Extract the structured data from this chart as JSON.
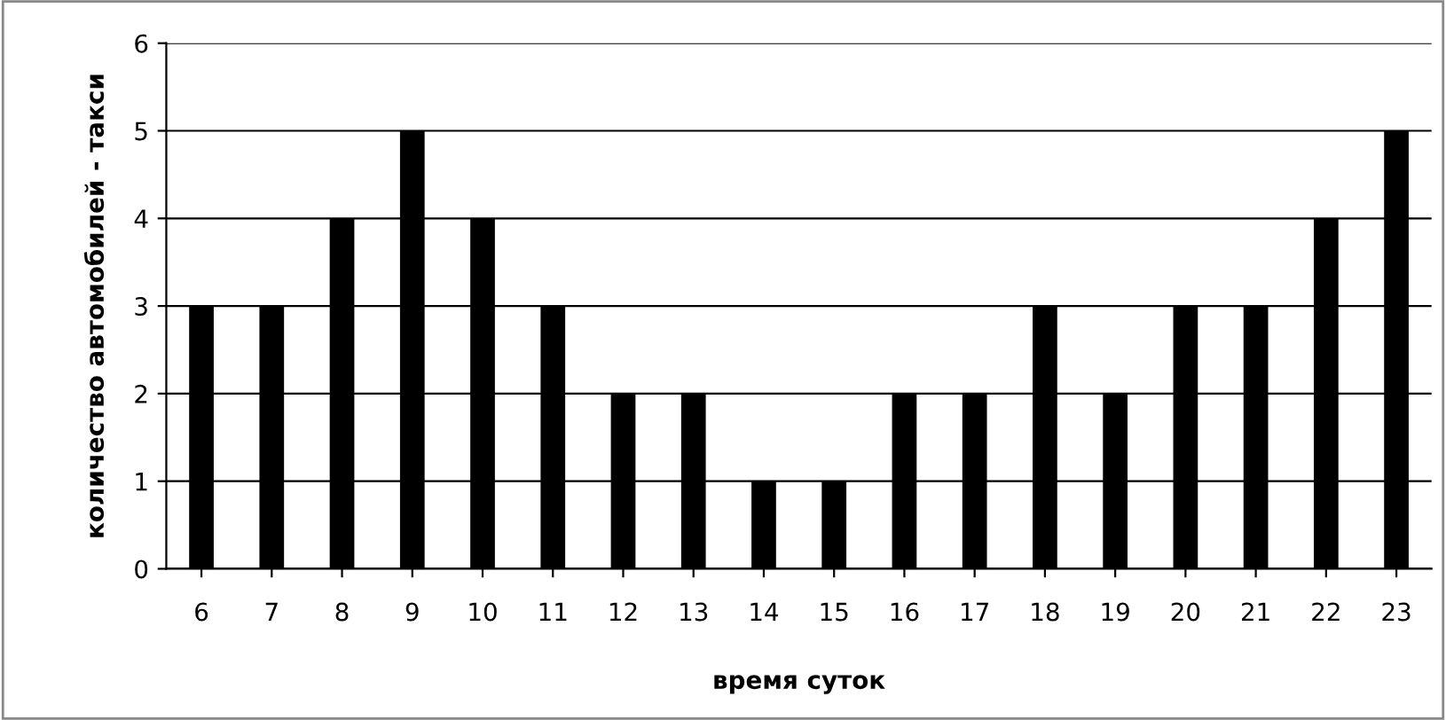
{
  "chart_data": {
    "type": "bar",
    "xlabel": "время суток",
    "ylabel": "количество автомобилей - такси",
    "categories": [
      "6",
      "7",
      "8",
      "9",
      "10",
      "11",
      "12",
      "13",
      "14",
      "15",
      "16",
      "17",
      "18",
      "19",
      "20",
      "21",
      "22",
      "23"
    ],
    "values": [
      3,
      3,
      4,
      5,
      4,
      3,
      2,
      2,
      1,
      1,
      2,
      2,
      3,
      2,
      3,
      3,
      4,
      5
    ],
    "color": "#000000",
    "ylim": [
      0,
      6
    ],
    "yticks": [
      0,
      1,
      2,
      3,
      4,
      5,
      6
    ],
    "grid": "y",
    "legend": false
  }
}
